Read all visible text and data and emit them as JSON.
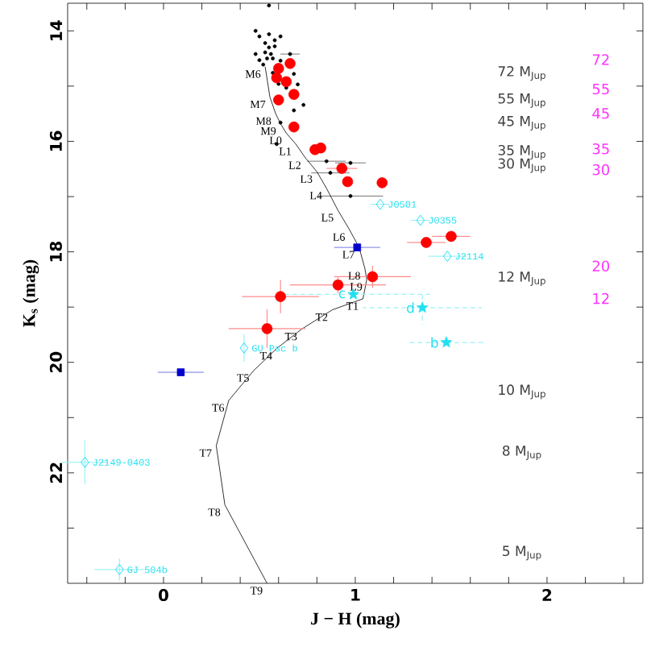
{
  "chart_data": {
    "type": "scatter",
    "xlabel": "J − H (mag)",
    "ylabel": "K$_{s}$ (mag)",
    "xlim": [
      -0.5,
      2.5
    ],
    "ylim": [
      24,
      13.5
    ],
    "xticks": [
      {
        "value": -0.4,
        "label": null
      },
      {
        "value": -0.2,
        "label": null
      },
      0,
      {
        "value": 0.2,
        "label": null
      },
      {
        "value": 0.4,
        "label": null
      },
      {
        "value": 0.6,
        "label": null
      },
      {
        "value": 0.8,
        "label": null
      },
      1,
      {
        "value": 1.2,
        "label": null
      },
      {
        "value": 1.4,
        "label": null
      },
      {
        "value": 1.6,
        "label": null
      },
      {
        "value": 1.8,
        "label": null
      },
      2,
      {
        "value": 2.2,
        "label": null
      },
      {
        "value": 2.4,
        "label": null
      }
    ],
    "yticks": [
      14,
      {
        "value": 15,
        "label": null
      },
      16,
      {
        "value": 17,
        "label": null
      },
      18,
      {
        "value": 19,
        "label": null
      },
      20,
      {
        "value": 21,
        "label": null
      },
      22,
      {
        "value": 23,
        "label": null
      }
    ],
    "grid": false,
    "series": [
      {
        "marker": "circle",
        "color": "#000000",
        "x": [
          0.55,
          0.48,
          0.5,
          0.55,
          0.61,
          0.53,
          0.58,
          0.55,
          0.58,
          0.53,
          0.56,
          0.48,
          0.54,
          0.57,
          0.5,
          0.66,
          0.52,
          0.61,
          0.57,
          0.68,
          0.6,
          0.7,
          0.64,
          0.73,
          0.68,
          0.61,
          0.59,
          0.85,
          0.87,
          0.975,
          0.975
        ],
        "values": [
          13.54,
          14.0,
          14.1,
          14.06,
          14.1,
          14.22,
          14.17,
          14.3,
          14.28,
          14.39,
          14.42,
          14.42,
          14.5,
          14.5,
          14.53,
          14.42,
          14.61,
          14.54,
          14.76,
          14.78,
          14.96,
          14.97,
          15.03,
          15.34,
          15.44,
          15.66,
          16.05,
          16.36,
          16.57,
          16.39,
          16.99
        ],
        "xerrors": [
          null,
          null,
          null,
          null,
          null,
          null,
          null,
          null,
          null,
          null,
          null,
          null,
          null,
          null,
          null,
          0.05,
          null,
          null,
          null,
          null,
          null,
          null,
          null,
          null,
          null,
          null,
          null,
          0.1,
          0.1,
          0.08,
          0.17
        ]
      },
      {
        "type": "line",
        "color": "#000000",
        "x": [
          0.53,
          0.555,
          0.585,
          0.61,
          0.64,
          0.69,
          0.74,
          0.8,
          0.85,
          0.91,
          0.97,
          1.02,
          1.05,
          1.06,
          1.04,
          0.88,
          0.72,
          0.59,
          0.47,
          0.34,
          0.275,
          0.32,
          0.54
        ],
        "values": [
          14.65,
          15.2,
          15.5,
          15.68,
          15.85,
          16.05,
          16.3,
          16.55,
          16.85,
          17.25,
          17.6,
          17.92,
          18.3,
          18.5,
          18.85,
          19.05,
          19.4,
          19.75,
          20.15,
          20.69,
          21.51,
          22.58,
          24.0
        ],
        "value_labels": [
          "M6",
          "M7",
          "M8",
          "M9",
          "L0",
          "L1",
          "L2",
          "L3",
          "L4",
          "L5",
          "L6",
          "L7",
          "L8",
          "L9",
          "T1",
          "T2",
          "T3",
          "T4",
          "T5",
          "T6",
          "T7",
          "T8",
          "T9"
        ]
      },
      {
        "marker": "circle",
        "color": "#ff0000",
        "x": [
          0.6,
          0.66,
          0.59,
          0.64,
          0.6,
          0.68,
          0.68,
          0.79,
          0.82,
          0.93,
          0.96,
          1.14,
          1.37,
          1.5,
          0.91,
          1.09,
          0.61,
          0.54
        ],
        "values": [
          14.68,
          14.59,
          14.85,
          14.92,
          15.25,
          15.15,
          15.74,
          16.15,
          16.12,
          16.49,
          16.73,
          16.75,
          17.83,
          17.72,
          18.6,
          18.45,
          18.81,
          19.39
        ],
        "xerrors": [
          null,
          null,
          null,
          null,
          null,
          null,
          null,
          null,
          null,
          0.08,
          null,
          null,
          0.1,
          0.1,
          0.25,
          0.2,
          0.2,
          0.2
        ],
        "errors": [
          null,
          null,
          null,
          null,
          null,
          null,
          null,
          null,
          null,
          null,
          null,
          null,
          null,
          null,
          0.15,
          0.2,
          0.3,
          0.35
        ]
      },
      {
        "marker": "square",
        "color": "#0000cc",
        "x": [
          1.01,
          0.09
        ],
        "values": [
          17.92,
          20.18
        ],
        "xerrors": [
          0.12,
          0.12
        ]
      },
      {
        "marker": "diamond",
        "color": "#22e0f0",
        "x": [
          1.13,
          1.34,
          1.48,
          0.42,
          -0.41,
          -0.23
        ],
        "values": [
          17.14,
          17.43,
          18.08,
          19.74,
          21.81,
          23.75
        ],
        "xerrors": [
          0.05,
          0.05,
          0.1,
          null,
          0.12,
          0.13
        ],
        "errors": [
          null,
          null,
          null,
          0.25,
          0.4,
          0.2
        ],
        "value_labels": [
          "J0501",
          "J0355",
          "J2114",
          "GU Psc b",
          "J2149-0403",
          "GJ 504b"
        ]
      },
      {
        "marker": "star",
        "color": "#22e0f0",
        "x": [
          0.99,
          1.35,
          1.475
        ],
        "values": [
          18.77,
          19.01,
          19.64
        ],
        "xerrors": [
          0.4,
          0.31,
          0.2
        ],
        "errors": [
          null,
          0.3,
          null
        ],
        "value_labels": [
          "c",
          "d",
          "b"
        ]
      }
    ],
    "annotations": [
      "72 M$_{Jup}$",
      "55 M$_{Jup}$",
      "45 M$_{Jup}$",
      "35 M$_{Jup}$",
      "30 M$_{Jup}$",
      "12 M$_{Jup}$",
      "10 M$_{Jup}$",
      "8 M$_{Jup}$",
      "5 M$_{Jup}$",
      "72",
      "55",
      "45",
      "35",
      "30",
      "20",
      "12"
    ]
  }
}
